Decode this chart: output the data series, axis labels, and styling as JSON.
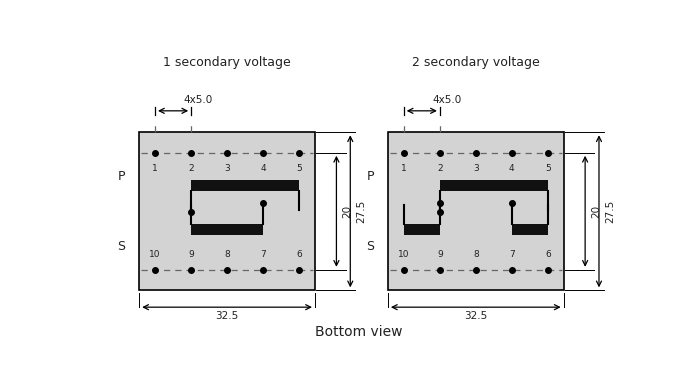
{
  "title_left": "1 secondary voltage",
  "title_right": "2 secondary voltage",
  "bottom_label": "Bottom view",
  "dim_4x5": "4x5.0",
  "dim_20": "20",
  "dim_27_5": "27.5",
  "dim_32_5": "32.5",
  "bg_color": "#d3d3d3",
  "fig_bg": "#ffffff",
  "bar_color": "#111111",
  "dash_color": "#666666",
  "text_color": "#222222",
  "pin_labels_top": [
    "1",
    "2",
    "3",
    "4",
    "5"
  ],
  "pin_labels_bottom": [
    "10",
    "9",
    "8",
    "7",
    "6"
  ]
}
